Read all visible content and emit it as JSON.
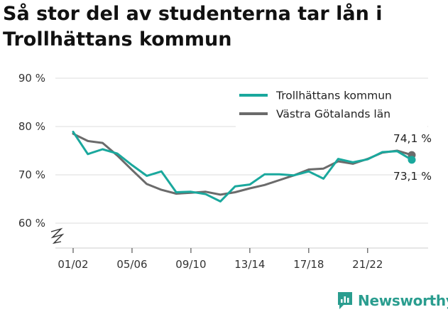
{
  "title": "Så stor del av studenterna tar lån i Trollhättans kommun",
  "brand": {
    "name": "Newsworthy",
    "icon": "newsworthy-logo-icon",
    "color": "#2a9d8f"
  },
  "chart_data": {
    "type": "line",
    "title": "Så stor del av studenterna tar lån i Trollhättans kommun",
    "xlabel": "",
    "ylabel": "",
    "ylim": [
      55,
      92
    ],
    "yticks": [
      60,
      70,
      80,
      90
    ],
    "ytick_labels": [
      "60 %",
      "70 %",
      "80 %",
      "90 %"
    ],
    "y_axis_break": true,
    "grid": true,
    "legend_position": "top-right",
    "x": [
      "01/02",
      "02/03",
      "03/04",
      "04/05",
      "05/06",
      "06/07",
      "07/08",
      "08/09",
      "09/10",
      "10/11",
      "11/12",
      "12/13",
      "13/14",
      "14/15",
      "15/16",
      "16/17",
      "17/18",
      "18/19",
      "19/20",
      "20/21",
      "21/22",
      "22/23",
      "23/24",
      "24/25"
    ],
    "xtick_labels": [
      "01/02",
      "05/06",
      "09/10",
      "13/14",
      "17/18",
      "21/22"
    ],
    "series": [
      {
        "name": "Trollhättans kommun",
        "color": "#1aa89d",
        "values": [
          78.9,
          74.3,
          75.3,
          74.4,
          72.0,
          69.8,
          70.7,
          66.4,
          66.5,
          66.0,
          64.5,
          67.6,
          68.0,
          70.1,
          70.1,
          69.9,
          70.7,
          69.2,
          73.3,
          72.6,
          73.2,
          74.7,
          74.9,
          73.1
        ]
      },
      {
        "name": "Västra Götalands län",
        "color": "#6b6b6b",
        "values": [
          78.5,
          77.0,
          76.6,
          74.0,
          71.0,
          68.1,
          66.9,
          66.1,
          66.3,
          66.5,
          65.9,
          66.4,
          67.2,
          67.9,
          68.9,
          69.9,
          71.1,
          71.3,
          72.8,
          72.3,
          73.3,
          74.6,
          75.0,
          74.1
        ]
      }
    ],
    "end_labels": [
      {
        "series": "Västra Götalands län",
        "text": "74,1 %"
      },
      {
        "series": "Trollhättans kommun",
        "text": "73,1 %"
      }
    ]
  }
}
